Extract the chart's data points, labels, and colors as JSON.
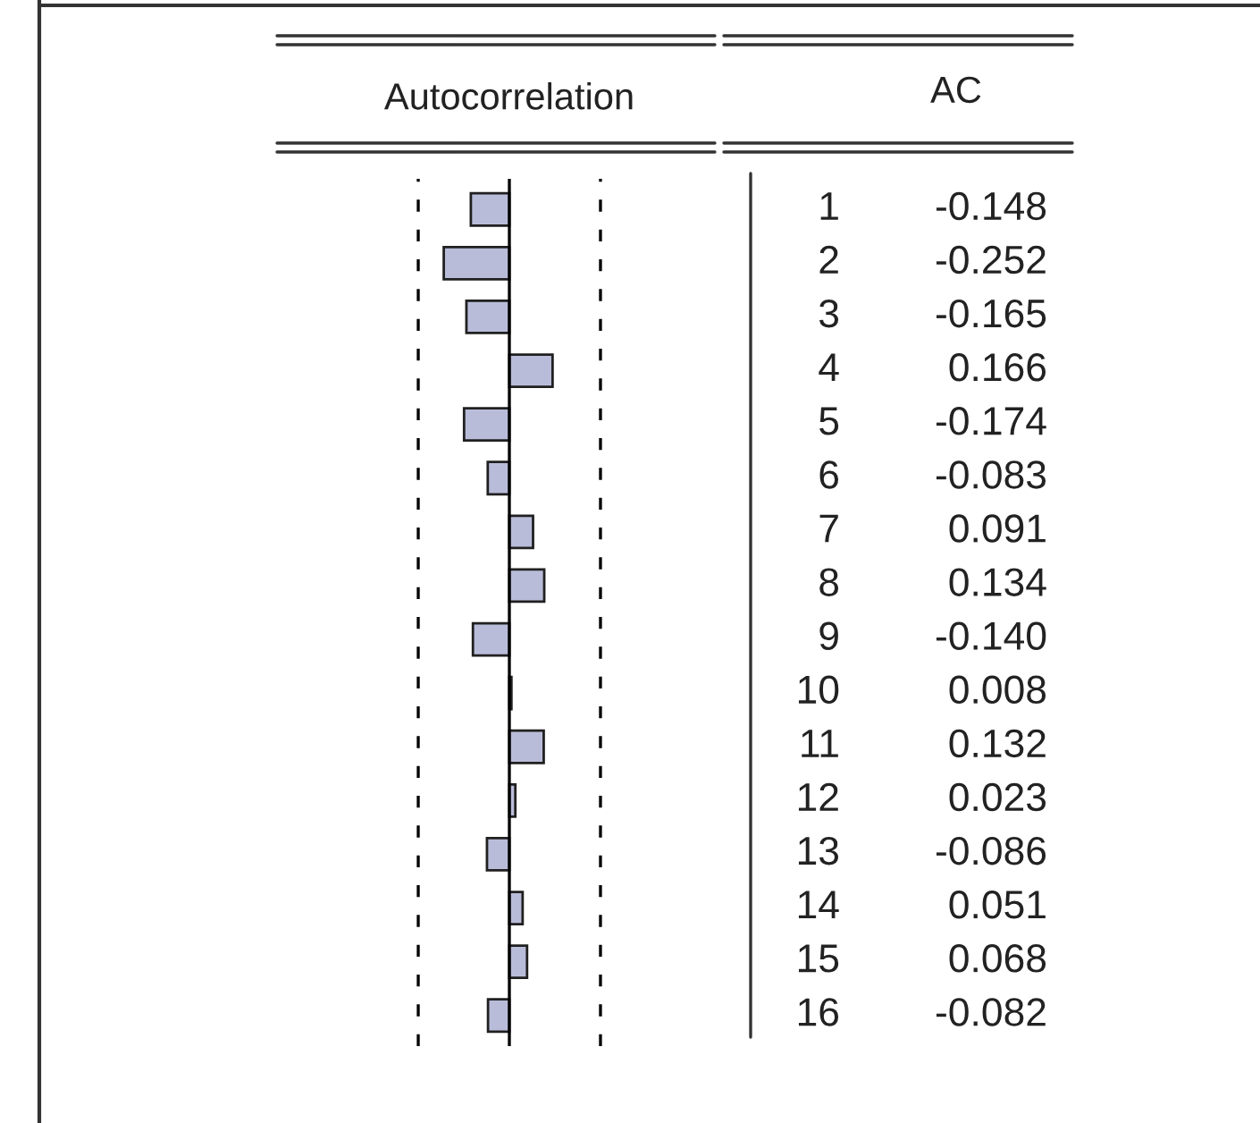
{
  "chart_data": {
    "type": "bar",
    "orientation": "horizontal",
    "xlabel": "Autocorrelation",
    "annotations": [
      "AC"
    ],
    "categories": [
      "1",
      "2",
      "3",
      "4",
      "5",
      "6",
      "7",
      "8",
      "9",
      "10",
      "11",
      "12",
      "13",
      "14",
      "15",
      "16"
    ],
    "values": [
      -0.148,
      -0.252,
      -0.165,
      0.166,
      -0.174,
      -0.083,
      0.091,
      0.134,
      -0.14,
      0.008,
      0.132,
      0.023,
      -0.086,
      0.051,
      0.068,
      -0.082
    ],
    "value_labels": [
      "-0.148",
      "-0.252",
      "-0.165",
      "0.166",
      "-0.174",
      "-0.083",
      "0.091",
      "0.134",
      "-0.140",
      "0.008",
      "0.132",
      "0.023",
      "-0.086",
      "0.051",
      "0.068",
      "-0.082"
    ],
    "color": "#b9bcd9",
    "tick_labels": false,
    "ref_lines": [
      {
        "axis": "x",
        "value": -0.35,
        "color": "#000000",
        "line_style": "dashed"
      },
      {
        "axis": "x",
        "value": 0.35,
        "color": "#000000",
        "line_style": "dashed"
      }
    ]
  }
}
